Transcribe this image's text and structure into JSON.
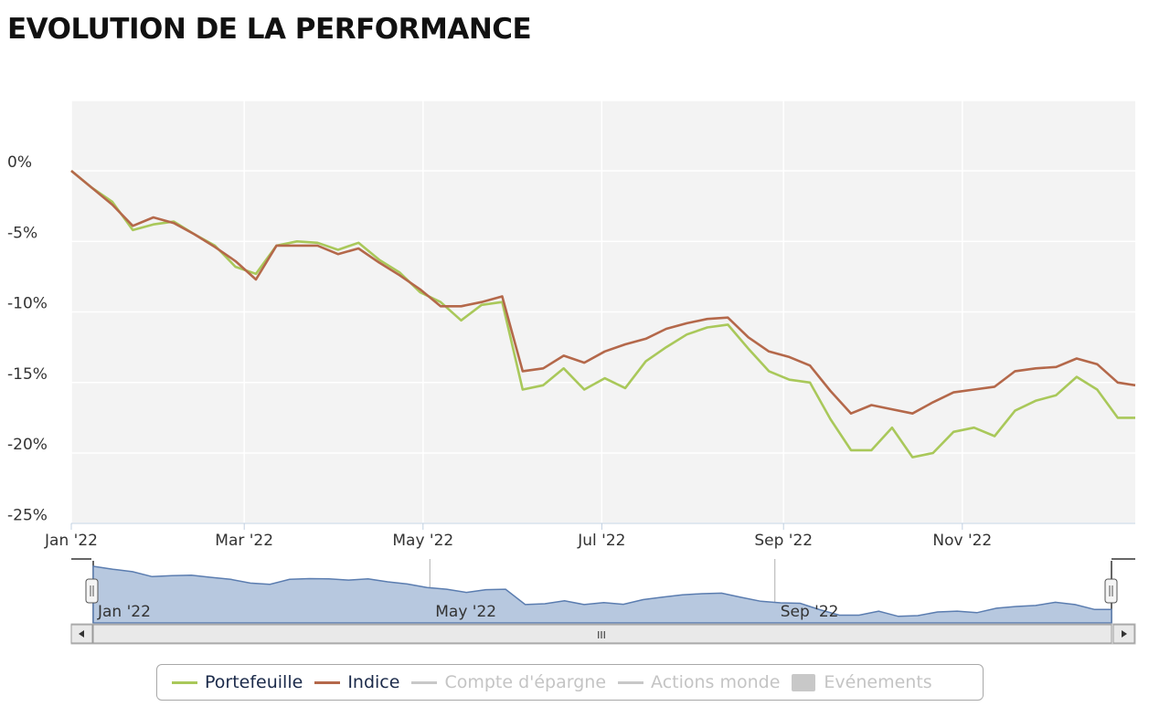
{
  "page": {
    "title": "EVOLUTION DE LA PERFORMANCE"
  },
  "colors": {
    "portefeuille": "#a9c85a",
    "indice": "#b4684a",
    "inactive": "#c4c4c4",
    "navigator_fill": "#b7c8df",
    "navigator_line": "#5b7db0",
    "plot_bg": "#f3f3f3"
  },
  "chart_data": {
    "type": "line",
    "title": "EVOLUTION DE LA PERFORMANCE",
    "xlabel": "",
    "ylabel": "",
    "x_tick_labels": [
      "Jan '22",
      "Mar '22",
      "May '22",
      "Jul '22",
      "Sep '22",
      "Nov '22"
    ],
    "y_tick_labels": [
      "0%",
      "-5%",
      "-10%",
      "-15%",
      "-20%",
      "-25%"
    ],
    "ylim": [
      -25,
      5
    ],
    "grid": true,
    "legend_position": "bottom",
    "x": [
      "2022-01-01",
      "2022-01-08",
      "2022-01-15",
      "2022-01-22",
      "2022-01-29",
      "2022-02-05",
      "2022-02-12",
      "2022-02-19",
      "2022-02-26",
      "2022-03-05",
      "2022-03-12",
      "2022-03-19",
      "2022-03-26",
      "2022-04-02",
      "2022-04-09",
      "2022-04-16",
      "2022-04-23",
      "2022-04-30",
      "2022-05-07",
      "2022-05-14",
      "2022-05-21",
      "2022-05-28",
      "2022-06-04",
      "2022-06-11",
      "2022-06-18",
      "2022-06-25",
      "2022-07-02",
      "2022-07-09",
      "2022-07-16",
      "2022-07-23",
      "2022-07-30",
      "2022-08-06",
      "2022-08-13",
      "2022-08-20",
      "2022-08-27",
      "2022-09-03",
      "2022-09-10",
      "2022-09-17",
      "2022-09-24",
      "2022-10-01",
      "2022-10-08",
      "2022-10-15",
      "2022-10-22",
      "2022-10-29",
      "2022-11-05",
      "2022-11-12",
      "2022-11-19",
      "2022-11-26",
      "2022-12-03",
      "2022-12-10",
      "2022-12-17",
      "2022-12-24",
      "2022-12-30"
    ],
    "series": [
      {
        "name": "Portefeuille",
        "values": [
          0.0,
          -1.2,
          -2.2,
          -4.2,
          -3.8,
          -3.6,
          -4.5,
          -5.3,
          -6.8,
          -7.3,
          -5.3,
          -5.0,
          -5.1,
          -5.6,
          -5.1,
          -6.3,
          -7.2,
          -8.6,
          -9.3,
          -10.6,
          -9.5,
          -9.3,
          -15.5,
          -15.2,
          -14.0,
          -15.5,
          -14.7,
          -15.4,
          -13.5,
          -12.5,
          -11.6,
          -11.1,
          -10.9,
          -12.6,
          -14.2,
          -14.8,
          -15.0,
          -17.6,
          -19.8,
          -19.8,
          -18.2,
          -20.3,
          -20.0,
          -18.5,
          -18.2,
          -18.8,
          -17.0,
          -16.3,
          -15.9,
          -14.6,
          -15.5,
          -17.5,
          -17.5
        ]
      },
      {
        "name": "Indice",
        "values": [
          0.0,
          -1.2,
          -2.4,
          -3.9,
          -3.3,
          -3.7,
          -4.5,
          -5.4,
          -6.4,
          -7.7,
          -5.3,
          -5.3,
          -5.3,
          -5.9,
          -5.5,
          -6.5,
          -7.4,
          -8.4,
          -9.6,
          -9.6,
          -9.3,
          -8.9,
          -14.2,
          -14.0,
          -13.1,
          -13.6,
          -12.8,
          -12.3,
          -11.9,
          -11.2,
          -10.8,
          -10.5,
          -10.4,
          -11.8,
          -12.8,
          -13.2,
          -13.8,
          -15.6,
          -17.2,
          -16.6,
          -16.9,
          -17.2,
          -16.4,
          -15.7,
          -15.5,
          -15.3,
          -14.2,
          -14.0,
          -13.9,
          -13.3,
          -13.7,
          -15.0,
          -15.2
        ]
      }
    ]
  },
  "navigator": {
    "x_tick_labels": [
      "Jan '22",
      "May '22",
      "Sep '22"
    ],
    "scroll_grip": "III"
  },
  "legend": {
    "items": [
      {
        "label": "Portefeuille",
        "state": "active"
      },
      {
        "label": "Indice",
        "state": "active"
      },
      {
        "label": "Compte d'épargne",
        "state": "inactive"
      },
      {
        "label": "Actions monde",
        "state": "inactive"
      },
      {
        "label": "Evénements",
        "state": "inactive"
      }
    ]
  }
}
